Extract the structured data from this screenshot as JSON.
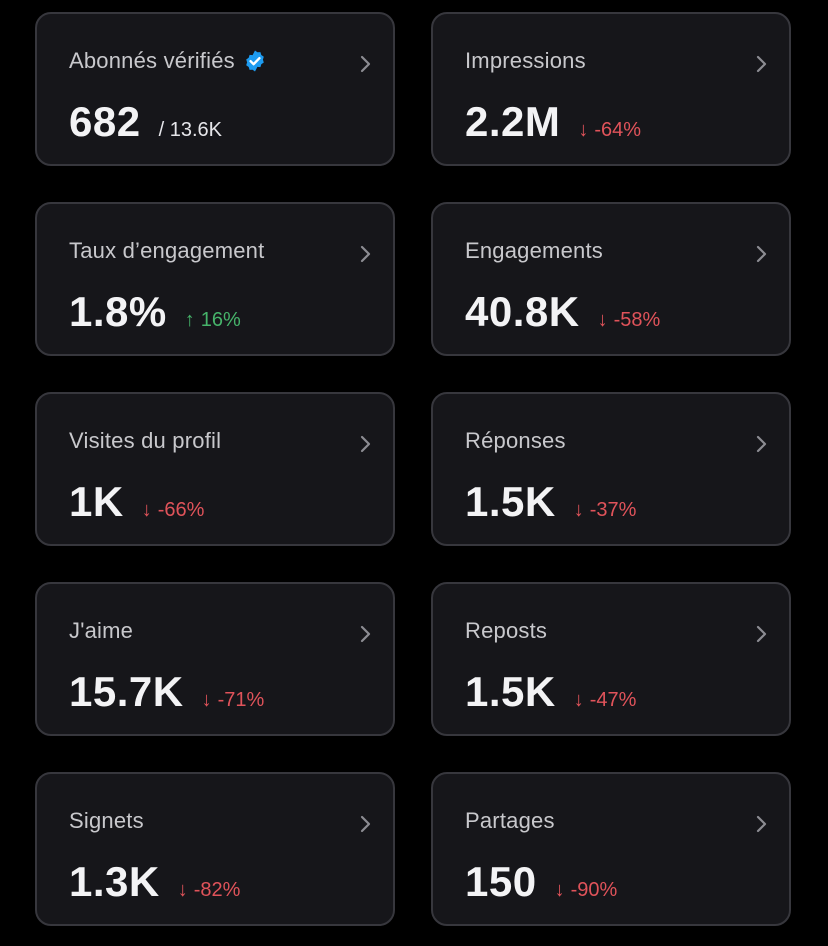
{
  "cards": [
    {
      "label": "Abonnés vérifiés",
      "value": "682",
      "total": "/ 13.6K",
      "verified": true
    },
    {
      "label": "Impressions",
      "value": "2.2M",
      "delta": "-64%",
      "arrow": "↓",
      "direction": "down"
    },
    {
      "label": "Taux d’engagement",
      "value": "1.8%",
      "delta": "16%",
      "arrow": "↑",
      "direction": "up"
    },
    {
      "label": "Engagements",
      "value": "40.8K",
      "delta": "-58%",
      "arrow": "↓",
      "direction": "down"
    },
    {
      "label": "Visites du profil",
      "value": "1K",
      "delta": "-66%",
      "arrow": "↓",
      "direction": "down"
    },
    {
      "label": "Réponses",
      "value": "1.5K",
      "delta": "-37%",
      "arrow": "↓",
      "direction": "down"
    },
    {
      "label": "J'aime",
      "value": "15.7K",
      "delta": "-71%",
      "arrow": "↓",
      "direction": "down"
    },
    {
      "label": "Reposts",
      "value": "1.5K",
      "delta": "-47%",
      "arrow": "↓",
      "direction": "down"
    },
    {
      "label": "Signets",
      "value": "1.3K",
      "delta": "-82%",
      "arrow": "↓",
      "direction": "down"
    },
    {
      "label": "Partages",
      "value": "150",
      "delta": "-90%",
      "arrow": "↓",
      "direction": "down"
    }
  ],
  "colors": {
    "background": "#000000",
    "card": "#16161a",
    "border": "#37373d",
    "verified_badge": "#1d9bf0",
    "negative": "#e0535a",
    "positive": "#46b36a"
  },
  "icons": {
    "verified": "verified-badge-icon",
    "chevron": "chevron-right-icon"
  }
}
